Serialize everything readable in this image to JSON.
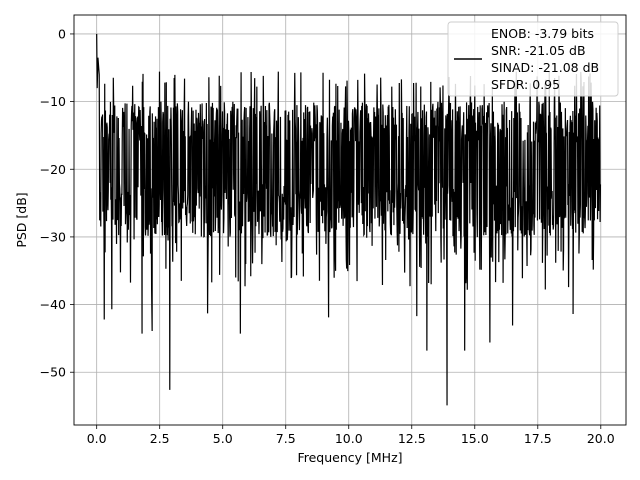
{
  "chart_data": {
    "type": "line",
    "title": "",
    "xlabel": "Frequency [MHz]",
    "ylabel": "PSD [dB]",
    "xlim": [
      -0.9,
      21.0
    ],
    "ylim": [
      -57.8,
      2.8
    ],
    "xticks": [
      0.0,
      2.5,
      5.0,
      7.5,
      10.0,
      12.5,
      15.0,
      17.5,
      20.0
    ],
    "xtick_labels": [
      "0.0",
      "2.5",
      "5.0",
      "7.5",
      "10.0",
      "12.5",
      "15.0",
      "17.5",
      "20.0"
    ],
    "yticks": [
      0,
      -10,
      -20,
      -30,
      -40,
      -50
    ],
    "ytick_labels": [
      "0",
      "−10",
      "−20",
      "−30",
      "−40",
      "−50"
    ],
    "grid": true,
    "legend_position": "upper-right",
    "series": [
      {
        "color": "#000000",
        "x_start": 0.0,
        "x_end": 20.0,
        "peak_points": [
          [
            0.0,
            0.0
          ],
          [
            0.02,
            -8.0
          ],
          [
            0.05,
            -3.5
          ],
          [
            0.1,
            -6.0
          ]
        ],
        "min_points": [
          [
            0.3,
            -42.2
          ],
          [
            0.6,
            -40.7
          ],
          [
            1.8,
            -44.3
          ],
          [
            2.2,
            -43.9
          ],
          [
            2.9,
            -52.6
          ],
          [
            4.4,
            -41.3
          ],
          [
            5.7,
            -44.3
          ],
          [
            9.2,
            -41.9
          ],
          [
            12.7,
            -41.7
          ],
          [
            13.1,
            -46.8
          ],
          [
            13.9,
            -54.9
          ],
          [
            14.6,
            -46.8
          ],
          [
            15.6,
            -45.6
          ],
          [
            16.5,
            -43.1
          ],
          [
            18.9,
            -41.4
          ]
        ],
        "noise_upper": -10,
        "noise_lower": -30
      }
    ],
    "legend": {
      "lines": [
        "ENOB: -3.79 bits",
        "SNR: -21.05 dB",
        "SINAD: -21.08 dB",
        "SFDR: 0.95"
      ]
    }
  }
}
